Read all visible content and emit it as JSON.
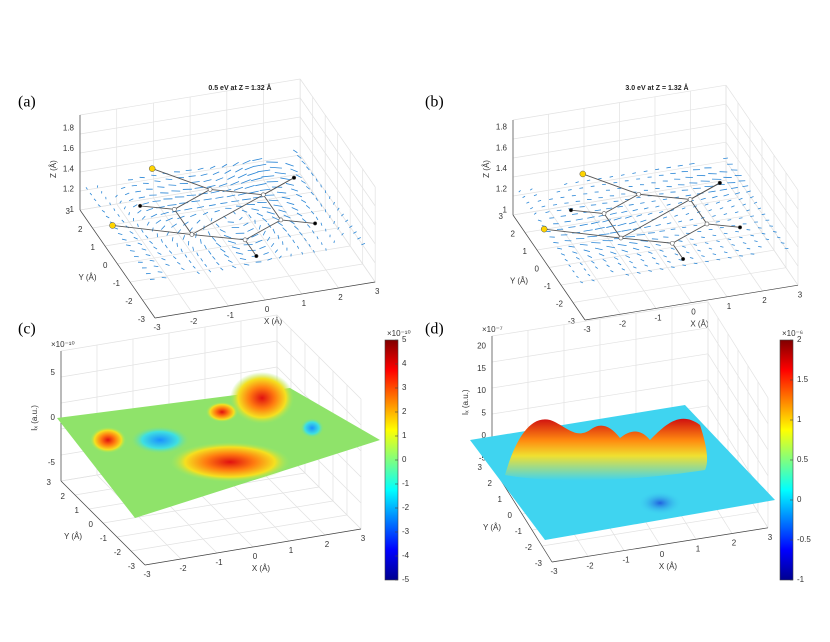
{
  "panels": [
    {
      "label": "(a)",
      "title": "0.5 eV at Z = 1.32 Å",
      "z_label": "Z (Å)",
      "x_label": "X (Å)",
      "y_label": "Y (Å)",
      "z_ticks": [
        "1",
        "1.2",
        "1.4",
        "1.6",
        "1.8"
      ],
      "x_ticks": [
        "-3",
        "-2",
        "-1",
        "0",
        "1",
        "2",
        "3"
      ],
      "y_ticks": [
        "-3",
        "-2",
        "-1",
        "0",
        "1",
        "2",
        "3"
      ]
    },
    {
      "label": "(b)",
      "title": "3.0 eV at Z = 1.32 Å",
      "z_label": "Z (Å)",
      "x_label": "X (Å)",
      "y_label": "Y (Å)",
      "z_ticks": [
        "1",
        "1.2",
        "1.4",
        "1.6",
        "1.8"
      ],
      "x_ticks": [
        "-3",
        "-2",
        "-1",
        "0",
        "1",
        "2",
        "3"
      ],
      "y_ticks": [
        "-3",
        "-2",
        "-1",
        "0",
        "1",
        "2",
        "3"
      ]
    },
    {
      "label": "(c)",
      "z_label": "Iₓ (a.u.)",
      "z_exponent": "×10⁻¹⁰",
      "x_label": "X (Å)",
      "y_label": "Y (Å)",
      "z_ticks": [
        "-5",
        "0",
        "5"
      ],
      "x_ticks": [
        "-3",
        "-2",
        "-1",
        "0",
        "1",
        "2",
        "3"
      ],
      "y_ticks": [
        "-3",
        "-2",
        "-1",
        "0",
        "1",
        "2",
        "3"
      ],
      "colorbar": {
        "exponent": "×10⁻¹⁰",
        "ticks": [
          "5",
          "4",
          "3",
          "2",
          "1",
          "0",
          "-1",
          "-2",
          "-3",
          "-4",
          "-5"
        ]
      }
    },
    {
      "label": "(d)",
      "z_label": "Iₓ (a.u.)",
      "z_exponent": "×10⁻⁷",
      "x_label": "X (Å)",
      "y_label": "Y (Å)",
      "z_ticks": [
        "-5",
        "0",
        "5",
        "10",
        "15",
        "20"
      ],
      "x_ticks": [
        "-3",
        "-2",
        "-1",
        "0",
        "1",
        "2",
        "3"
      ],
      "y_ticks": [
        "-3",
        "-2",
        "-1",
        "0",
        "1",
        "2",
        "3"
      ],
      "colorbar": {
        "exponent": "×10⁻⁶",
        "ticks": [
          "2",
          "1.5",
          "1",
          "0.5",
          "0",
          "-0.5",
          "-1"
        ]
      }
    }
  ]
}
